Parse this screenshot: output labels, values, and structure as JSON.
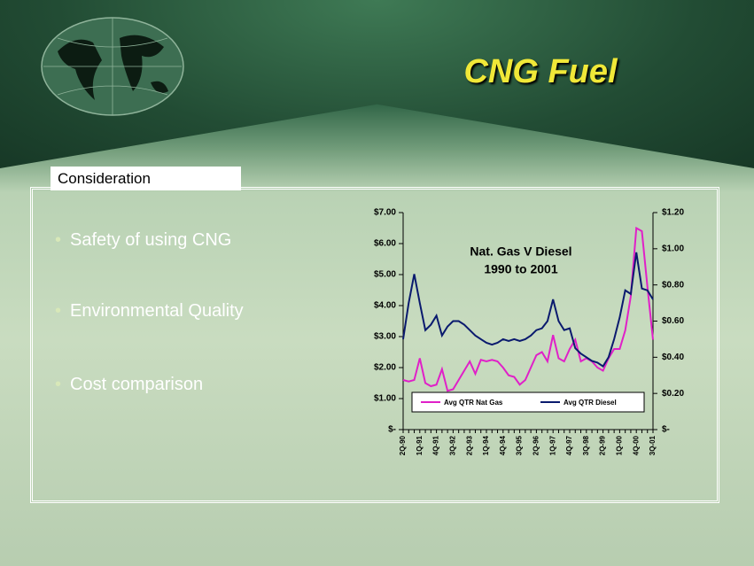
{
  "slide": {
    "title": "CNG Fuel",
    "section": "Consideration",
    "bullets": [
      "Safety of using CNG",
      "Environmental Quality",
      "Cost comparison"
    ]
  },
  "chart_data": {
    "type": "line",
    "title": "Nat. Gas V Diesel",
    "subtitle": "1990 to 2001",
    "categories": [
      "2Q-90",
      null,
      null,
      "1Q-91",
      null,
      null,
      "4Q-91",
      null,
      null,
      "3Q-92",
      null,
      null,
      "2Q-93",
      null,
      null,
      "1Q-94",
      null,
      null,
      "4Q-94",
      null,
      null,
      "3Q-95",
      null,
      null,
      "2Q-96",
      null,
      null,
      "1Q-97",
      null,
      null,
      "4Q-97",
      null,
      null,
      "3Q-98",
      null,
      null,
      "2Q-99",
      null,
      null,
      "1Q-00",
      null,
      null,
      "4Q-00",
      null,
      null,
      "3Q-01"
    ],
    "series": [
      {
        "name": "Avg QTR Nat Gas",
        "color": "#e020c8",
        "axis": "y",
        "values": [
          1.6,
          1.55,
          1.6,
          2.3,
          1.5,
          1.4,
          1.45,
          1.95,
          1.25,
          1.3,
          1.6,
          1.9,
          2.2,
          1.8,
          2.25,
          2.2,
          2.25,
          2.2,
          2.0,
          1.75,
          1.7,
          1.45,
          1.6,
          2.0,
          2.4,
          2.5,
          2.2,
          3.05,
          2.3,
          2.2,
          2.6,
          2.9,
          2.2,
          2.3,
          2.2,
          2.0,
          1.9,
          2.3,
          2.6,
          2.6,
          3.2,
          4.3,
          6.5,
          6.4,
          4.6,
          2.9
        ]
      },
      {
        "name": "Avg QTR Diesel",
        "color": "#0a1a6e",
        "axis": "y2",
        "values": [
          0.5,
          0.7,
          0.86,
          0.7,
          0.55,
          0.58,
          0.63,
          0.52,
          0.57,
          0.6,
          0.6,
          0.58,
          0.55,
          0.52,
          0.5,
          0.48,
          0.47,
          0.48,
          0.5,
          0.49,
          0.5,
          0.49,
          0.5,
          0.52,
          0.55,
          0.56,
          0.6,
          0.72,
          0.6,
          0.55,
          0.56,
          0.45,
          0.42,
          0.4,
          0.38,
          0.37,
          0.35,
          0.4,
          0.5,
          0.62,
          0.77,
          0.75,
          0.98,
          0.78,
          0.77,
          0.72
        ]
      }
    ],
    "ylim": [
      0,
      7
    ],
    "yticks": [
      {
        "value": 0,
        "label": "$-"
      },
      {
        "value": 1,
        "label": "$1.00"
      },
      {
        "value": 2,
        "label": "$2.00"
      },
      {
        "value": 3,
        "label": "$3.00"
      },
      {
        "value": 4,
        "label": "$4.00"
      },
      {
        "value": 5,
        "label": "$5.00"
      },
      {
        "value": 6,
        "label": "$6.00"
      },
      {
        "value": 7,
        "label": "$7.00"
      }
    ],
    "y2lim": [
      0,
      1.2
    ],
    "y2ticks": [
      {
        "value": 0,
        "label": "$-"
      },
      {
        "value": 0.2,
        "label": "$0.20"
      },
      {
        "value": 0.4,
        "label": "$0.40"
      },
      {
        "value": 0.6,
        "label": "$0.60"
      },
      {
        "value": 0.8,
        "label": "$0.80"
      },
      {
        "value": 1,
        "label": "$1.00"
      },
      {
        "value": 1.2,
        "label": "$1.20"
      }
    ],
    "legend": "bottom"
  }
}
